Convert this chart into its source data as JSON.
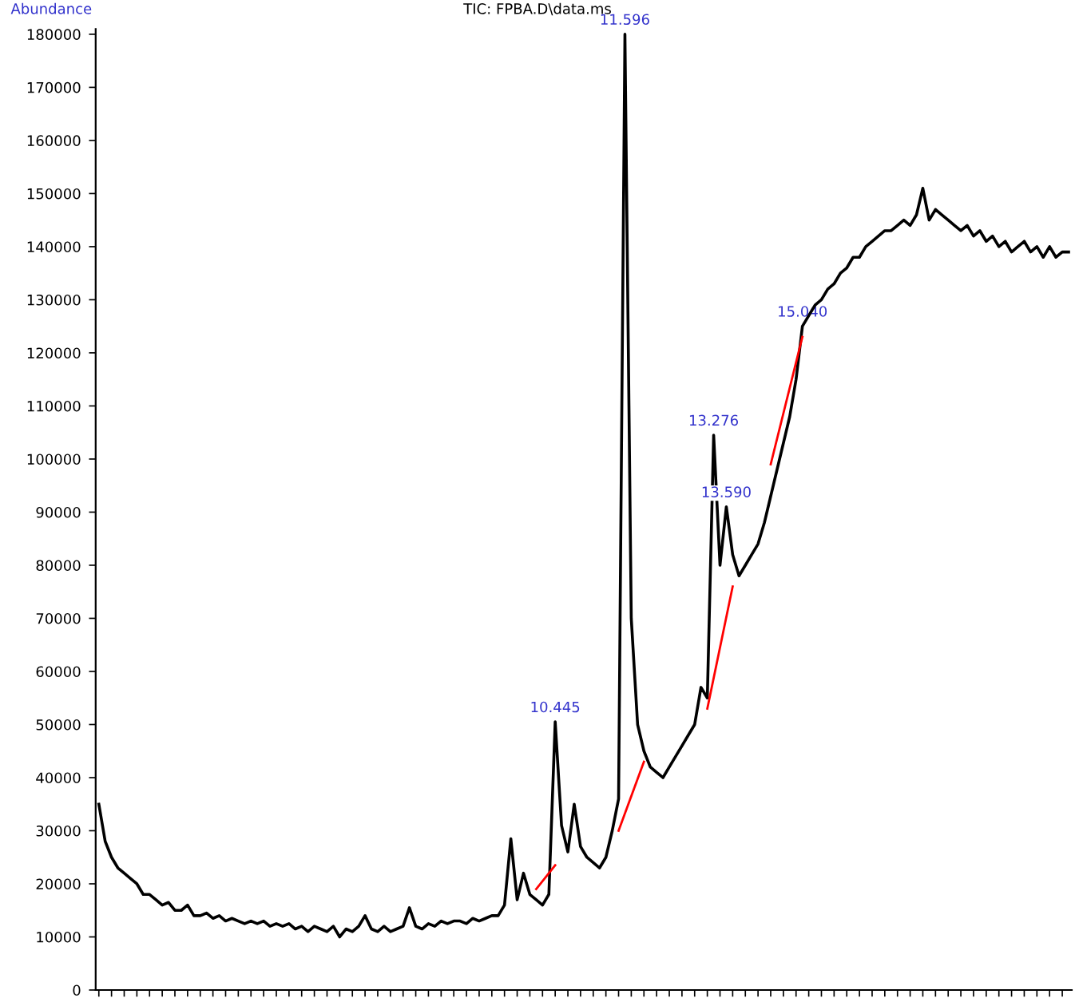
{
  "chart_data": {
    "type": "line",
    "title": "TIC: FPBA.D\\data.ms",
    "ylabel": "Abundance",
    "categories": [
      null,
      null,
      null,
      null,
      null,
      null,
      null,
      null,
      null,
      null,
      null,
      null,
      null,
      null,
      null,
      null,
      null,
      null,
      null,
      null,
      null,
      null,
      null,
      null,
      null,
      null,
      null,
      null,
      null,
      null,
      null,
      null,
      null,
      null,
      null,
      null,
      null,
      null,
      null,
      null,
      null,
      null,
      null,
      null,
      null,
      null,
      null,
      null,
      null,
      null,
      null,
      null,
      null,
      null,
      null,
      null,
      null,
      null,
      null,
      null,
      null,
      null,
      null,
      null,
      null,
      null,
      null,
      null,
      null,
      null,
      null,
      null,
      null,
      null,
      null,
      null,
      null,
      null,
      null,
      null,
      null,
      null,
      null,
      null,
      null,
      null,
      null,
      null,
      null,
      null,
      null,
      null,
      null,
      null,
      null,
      null,
      null,
      null,
      null,
      null,
      null,
      null,
      null,
      null,
      null,
      null,
      null,
      null,
      null,
      null,
      null,
      null,
      null,
      null,
      null,
      null,
      null,
      null,
      null,
      null,
      null,
      null,
      null,
      null,
      null,
      null,
      null,
      null,
      null,
      null,
      null,
      null,
      null,
      null,
      null,
      null,
      null,
      null,
      null,
      null,
      null,
      null,
      null,
      null,
      null,
      null,
      null,
      null,
      null,
      null,
      null,
      null,
      null,
      null
    ],
    "series": [
      {
        "color": "#000000",
        "values": [
          35000,
          28000,
          25000,
          23000,
          22000,
          21000,
          20000,
          18000,
          18000,
          17000,
          16000,
          16500,
          15000,
          15000,
          16000,
          14000,
          14000,
          14500,
          13500,
          14000,
          13000,
          13500,
          13000,
          12500,
          13000,
          12500,
          13000,
          12000,
          12500,
          12000,
          12500,
          11500,
          12000,
          11000,
          12000,
          11500,
          11000,
          12000,
          10000,
          11500,
          11000,
          12000,
          14000,
          11500,
          11000,
          12000,
          11000,
          11500,
          12000,
          15500,
          12000,
          11500,
          12500,
          12000,
          13000,
          12500,
          13000,
          13000,
          12500,
          13500,
          13000,
          13500,
          14000,
          14000,
          16000,
          28500,
          17000,
          22000,
          18000,
          17000,
          16000,
          18000,
          50500,
          31000,
          26000,
          35000,
          27000,
          25000,
          24000,
          23000,
          25000,
          30000,
          36000,
          180000,
          70000,
          50000,
          45000,
          42000,
          41000,
          40000,
          42000,
          44000,
          46000,
          48000,
          50000,
          57000,
          55000,
          104500,
          80000,
          91000,
          82000,
          78000,
          80000,
          82000,
          84000,
          88000,
          93000,
          98000,
          103000,
          108000,
          115000,
          125000,
          127000,
          129000,
          130000,
          132000,
          133000,
          135000,
          136000,
          138000,
          138000,
          140000,
          141000,
          142000,
          143000,
          143000,
          144000,
          145000,
          144000,
          146000,
          151000,
          145000,
          147000,
          146000,
          145000,
          144000,
          143000,
          144000,
          142000,
          143000,
          141000,
          142000,
          140000,
          141000,
          139000,
          140000,
          141000,
          139000,
          140000,
          138000,
          140000,
          138000,
          139000,
          139000
        ]
      },
      {
        "color": "#ff0000",
        "values": [
          null,
          null,
          null,
          null,
          null,
          null,
          null,
          null,
          null,
          null,
          null,
          null,
          null,
          null,
          null,
          null,
          null,
          null,
          null,
          null,
          null,
          null,
          null,
          null,
          null,
          null,
          null,
          null,
          null,
          null,
          null,
          null,
          null,
          null,
          null,
          null,
          null,
          null,
          null,
          null,
          null,
          null,
          null,
          null,
          null,
          null,
          null,
          null,
          null,
          null,
          null,
          null,
          null,
          null,
          null,
          null,
          null,
          null,
          null,
          null,
          null,
          null,
          null,
          null,
          null,
          null,
          null,
          null,
          null,
          19000,
          null,
          null,
          23500,
          null,
          null,
          null,
          null,
          null,
          null,
          null,
          null,
          null,
          null,
          null,
          null,
          null,
          null,
          null,
          null,
          null,
          null,
          null,
          null,
          null,
          null,
          null,
          null,
          null,
          null,
          null,
          null,
          null,
          null,
          null,
          null,
          null,
          null,
          null,
          null,
          null,
          null,
          null,
          null,
          null,
          null,
          null,
          null,
          null,
          null,
          null,
          null,
          null,
          null,
          null,
          null,
          null,
          null,
          null,
          null,
          null,
          null,
          null,
          null,
          null,
          null,
          null,
          null,
          null,
          null,
          null,
          null,
          null,
          null,
          null,
          null,
          null,
          null,
          null,
          null,
          null,
          null,
          null,
          null,
          null
        ]
      },
      {
        "color": "#ff0000",
        "values": [
          null,
          null,
          null,
          null,
          null,
          null,
          null,
          null,
          null,
          null,
          null,
          null,
          null,
          null,
          null,
          null,
          null,
          null,
          null,
          null,
          null,
          null,
          null,
          null,
          null,
          null,
          null,
          null,
          null,
          null,
          null,
          null,
          null,
          null,
          null,
          null,
          null,
          null,
          null,
          null,
          null,
          null,
          null,
          null,
          null,
          null,
          null,
          null,
          null,
          null,
          null,
          null,
          null,
          null,
          null,
          null,
          null,
          null,
          null,
          null,
          null,
          null,
          null,
          null,
          null,
          null,
          null,
          null,
          null,
          null,
          null,
          null,
          null,
          null,
          null,
          null,
          null,
          null,
          null,
          null,
          null,
          null,
          30000,
          null,
          null,
          null,
          43000,
          null,
          null,
          null,
          null,
          null,
          null,
          null,
          null,
          null,
          null,
          null,
          null,
          null,
          null,
          null,
          null,
          null,
          null,
          null,
          null,
          null,
          null,
          null,
          null,
          null,
          null,
          null,
          null,
          null,
          null,
          null,
          null,
          null,
          null,
          null,
          null,
          null,
          null,
          null,
          null,
          null,
          null,
          null,
          null,
          null,
          null,
          null,
          null,
          null,
          null,
          null,
          null,
          null,
          null,
          null,
          null,
          null,
          null,
          null,
          null,
          null,
          null,
          null,
          null,
          null,
          null,
          null
        ]
      },
      {
        "color": "#ff0000",
        "values": [
          null,
          null,
          null,
          null,
          null,
          null,
          null,
          null,
          null,
          null,
          null,
          null,
          null,
          null,
          null,
          null,
          null,
          null,
          null,
          null,
          null,
          null,
          null,
          null,
          null,
          null,
          null,
          null,
          null,
          null,
          null,
          null,
          null,
          null,
          null,
          null,
          null,
          null,
          null,
          null,
          null,
          null,
          null,
          null,
          null,
          null,
          null,
          null,
          null,
          null,
          null,
          null,
          null,
          null,
          null,
          null,
          null,
          null,
          null,
          null,
          null,
          null,
          null,
          null,
          null,
          null,
          null,
          null,
          null,
          null,
          null,
          null,
          null,
          null,
          null,
          null,
          null,
          null,
          null,
          null,
          null,
          null,
          null,
          null,
          null,
          null,
          null,
          null,
          null,
          null,
          null,
          null,
          null,
          null,
          null,
          null,
          53000,
          null,
          null,
          null,
          76000,
          null,
          null,
          null,
          null,
          null,
          null,
          null,
          null,
          null,
          null,
          null,
          null,
          null,
          null,
          null,
          null,
          null,
          null,
          null,
          null,
          null,
          null,
          null,
          null,
          null,
          null,
          null,
          null,
          null,
          null,
          null,
          null,
          null,
          null,
          null,
          null,
          null,
          null,
          null,
          null,
          null,
          null,
          null,
          null,
          null,
          null,
          null,
          null,
          null,
          null,
          null,
          null,
          null
        ]
      },
      {
        "color": "#ff0000",
        "values": [
          null,
          null,
          null,
          null,
          null,
          null,
          null,
          null,
          null,
          null,
          null,
          null,
          null,
          null,
          null,
          null,
          null,
          null,
          null,
          null,
          null,
          null,
          null,
          null,
          null,
          null,
          null,
          null,
          null,
          null,
          null,
          null,
          null,
          null,
          null,
          null,
          null,
          null,
          null,
          null,
          null,
          null,
          null,
          null,
          null,
          null,
          null,
          null,
          null,
          null,
          null,
          null,
          null,
          null,
          null,
          null,
          null,
          null,
          null,
          null,
          null,
          null,
          null,
          null,
          null,
          null,
          null,
          null,
          null,
          null,
          null,
          null,
          null,
          null,
          null,
          null,
          null,
          null,
          null,
          null,
          null,
          null,
          null,
          null,
          null,
          null,
          null,
          null,
          null,
          null,
          null,
          null,
          null,
          null,
          null,
          null,
          null,
          null,
          null,
          null,
          null,
          null,
          null,
          null,
          null,
          null,
          99000,
          null,
          null,
          null,
          null,
          123000,
          null,
          null,
          null,
          null,
          null,
          null,
          null,
          null,
          null,
          null,
          null,
          null,
          null,
          null,
          null,
          null,
          null,
          null,
          null,
          null,
          null,
          null,
          null,
          null,
          null,
          null,
          null,
          null,
          null,
          null,
          null,
          null,
          null,
          null,
          null,
          null,
          null,
          null,
          null,
          null,
          null,
          null
        ]
      }
    ],
    "ylim": [
      0,
      181000
    ],
    "yticks": [
      0,
      10000,
      20000,
      30000,
      40000,
      50000,
      60000,
      70000,
      80000,
      90000,
      100000,
      110000,
      120000,
      130000,
      140000,
      150000,
      160000,
      170000,
      180000
    ],
    "annotations": [
      {
        "text": "10.445",
        "y": 50500
      },
      {
        "text": "11.596",
        "y": 180000
      },
      {
        "text": "13.276",
        "y": 104500
      },
      {
        "text": "13.590",
        "y": 91000
      },
      {
        "text": "15.040",
        "y": 125000
      }
    ],
    "tick_labels": "y",
    "grid": false,
    "legend": false
  }
}
